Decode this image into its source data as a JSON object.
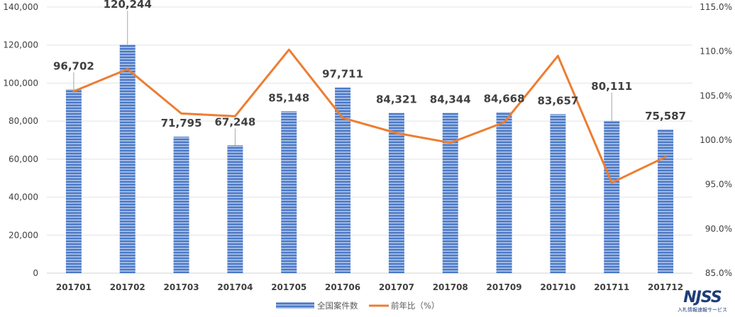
{
  "chart_data": {
    "type": "bar",
    "categories": [
      "201701",
      "201702",
      "201703",
      "201704",
      "201705",
      "201706",
      "201707",
      "201708",
      "201709",
      "201710",
      "201711",
      "201712"
    ],
    "series": [
      {
        "name": "全国案件数",
        "type": "bar",
        "axis": "left",
        "color": "#4472c4",
        "values": [
          96702,
          120244,
          71795,
          67248,
          85148,
          97711,
          84321,
          84344,
          84668,
          83657,
          80111,
          75587
        ],
        "labels": [
          "96,702",
          "120,244",
          "71,795",
          "67,248",
          "85,148",
          "97,711",
          "84,321",
          "84,344",
          "84,668",
          "83,657",
          "80,111",
          "75,587"
        ]
      },
      {
        "name": "前年比（%）",
        "type": "line",
        "axis": "right",
        "color": "#ed7d31",
        "values": [
          105.5,
          108.0,
          103.0,
          102.7,
          110.2,
          102.5,
          100.8,
          99.7,
          102.0,
          109.5,
          95.2,
          98.1
        ]
      }
    ],
    "left_axis": {
      "ylim": [
        0,
        140000
      ],
      "ticks": [
        "0",
        "20,000",
        "40,000",
        "60,000",
        "80,000",
        "100,000",
        "120,000",
        "140,000"
      ]
    },
    "right_axis": {
      "ylim": [
        85,
        115
      ],
      "ticks": [
        "85.0%",
        "90.0%",
        "95.0%",
        "100.0%",
        "105.0%",
        "110.0%",
        "115.0%"
      ]
    },
    "grid": true,
    "legend_position": "bottom"
  },
  "logo": {
    "main": "NJSS",
    "sub": "入札情報速報サービス"
  }
}
